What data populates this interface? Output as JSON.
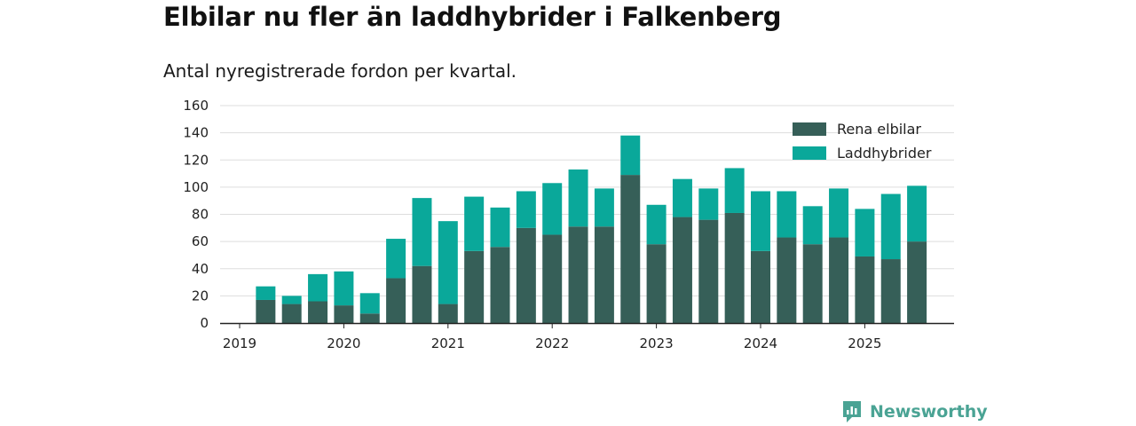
{
  "title": "Elbilar nu fler än laddhybrider i Falkenberg",
  "subtitle": "Antal nyregistrerade fordon per kvartal.",
  "brand": "Newsworthy",
  "colors": {
    "elbilar": "#365f58",
    "laddhybrider": "#0aa89a",
    "grid": "#dddddd",
    "axis": "#222222",
    "brand": "#4aa394"
  },
  "chart_data": {
    "type": "bar",
    "stacked": true,
    "x_tick_labels": [
      "2019",
      "2020",
      "2021",
      "2022",
      "2023",
      "2024",
      "2025"
    ],
    "y_ticks": [
      0,
      20,
      40,
      60,
      80,
      100,
      120,
      140,
      160
    ],
    "ylim": [
      0,
      160
    ],
    "grid": true,
    "legend_position": "top-right",
    "quarters": [
      "2019-Q2",
      "2019-Q3",
      "2019-Q4",
      "2020-Q1",
      "2020-Q2",
      "2020-Q3",
      "2020-Q4",
      "2021-Q1",
      "2021-Q2",
      "2021-Q3",
      "2021-Q4",
      "2022-Q1",
      "2022-Q2",
      "2022-Q3",
      "2022-Q4",
      "2023-Q1",
      "2023-Q2",
      "2023-Q3",
      "2023-Q4",
      "2024-Q1",
      "2024-Q2",
      "2024-Q3",
      "2024-Q4",
      "2025-Q1",
      "2025-Q2",
      "2025-Q3"
    ],
    "series": [
      {
        "name": "Rena elbilar",
        "values": [
          17,
          14,
          16,
          13,
          7,
          33,
          42,
          14,
          53,
          56,
          70,
          65,
          71,
          71,
          109,
          58,
          78,
          76,
          81,
          53,
          63,
          58,
          63,
          49,
          47,
          60
        ]
      },
      {
        "name": "Laddhybrider",
        "values": [
          10,
          6,
          20,
          25,
          15,
          29,
          50,
          61,
          40,
          29,
          27,
          38,
          42,
          28,
          29,
          29,
          28,
          23,
          33,
          44,
          34,
          28,
          36,
          35,
          48,
          41
        ]
      }
    ]
  }
}
